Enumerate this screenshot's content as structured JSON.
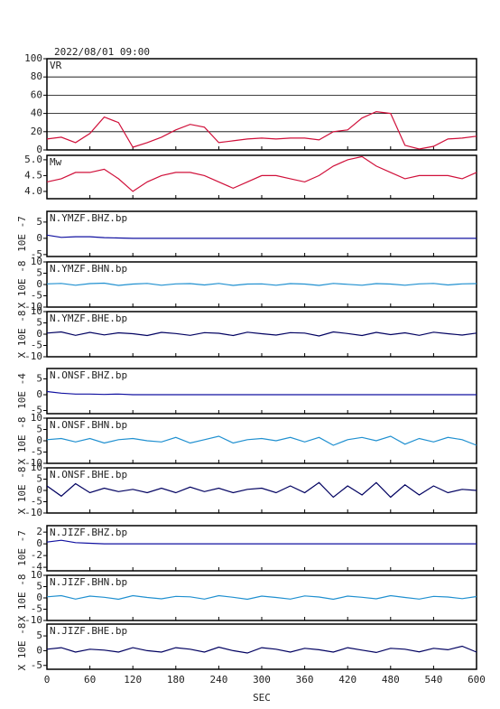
{
  "chart_data": [
    {
      "type": "line",
      "title": "2022/08/01 09:00",
      "label": "VR",
      "color": "#d0103a",
      "grid": true,
      "x": [
        0,
        20,
        40,
        60,
        80,
        100,
        120,
        140,
        160,
        180,
        200,
        220,
        240,
        260,
        280,
        300,
        320,
        340,
        360,
        380,
        400,
        420,
        440,
        460,
        480,
        500,
        520,
        540,
        560,
        580,
        600
      ],
      "values": [
        12,
        14,
        8,
        18,
        36,
        30,
        3,
        8,
        14,
        22,
        28,
        25,
        8,
        10,
        12,
        13,
        12,
        13,
        13,
        11,
        20,
        22,
        35,
        42,
        40,
        5,
        1,
        4,
        12,
        13,
        15
      ],
      "xlim": [
        0,
        600
      ],
      "ylim": [
        0,
        100
      ],
      "yticks": [
        0,
        20,
        40,
        60,
        80,
        100
      ]
    },
    {
      "type": "line",
      "label": "Mw",
      "color": "#d0103a",
      "x": [
        0,
        20,
        40,
        60,
        80,
        100,
        120,
        140,
        160,
        180,
        200,
        220,
        240,
        260,
        280,
        300,
        320,
        340,
        360,
        380,
        400,
        420,
        440,
        460,
        480,
        500,
        520,
        540,
        560,
        580,
        600
      ],
      "values": [
        4.3,
        4.4,
        4.6,
        4.6,
        4.7,
        4.4,
        4.0,
        4.3,
        4.5,
        4.6,
        4.6,
        4.5,
        4.3,
        4.1,
        4.3,
        4.5,
        4.5,
        4.4,
        4.3,
        4.5,
        4.8,
        5.0,
        5.1,
        4.8,
        4.6,
        4.4,
        4.5,
        4.5,
        4.5,
        4.4,
        4.6
      ],
      "xlim": [
        0,
        600
      ],
      "ylim": [
        3.77,
        5.14
      ],
      "yticks": [
        {
          "value": 4,
          "label": "4.0"
        },
        4.5,
        {
          "value": 5,
          "label": "5.0"
        }
      ]
    },
    {
      "type": "line",
      "label": "N.YMZF.BHZ.bp",
      "ylabel": "10E -7",
      "color": "#1010a0",
      "x": [
        0,
        20,
        40,
        60,
        80,
        100,
        120,
        140,
        160,
        180,
        200,
        220,
        240,
        260,
        280,
        300,
        320,
        340,
        360,
        380,
        400,
        420,
        440,
        460,
        480,
        500,
        520,
        540,
        560,
        580,
        600
      ],
      "values": [
        1,
        0.3,
        0.5,
        0.5,
        0.2,
        0.1,
        0,
        0,
        0,
        0,
        0,
        0,
        0,
        0,
        0,
        0,
        0,
        0,
        0,
        0,
        0,
        0,
        0,
        0,
        0,
        0,
        0,
        0,
        0,
        0,
        0
      ],
      "xlim": [
        0,
        600
      ],
      "ylim": [
        -5.6,
        8.3
      ],
      "yticks": [
        5,
        0,
        -5
      ]
    },
    {
      "type": "line",
      "label": "N.YMZF.BHN.bp",
      "ylabel": "X 10E -8",
      "color": "#2090d0",
      "x": [
        0,
        20,
        40,
        60,
        80,
        100,
        120,
        140,
        160,
        180,
        200,
        220,
        240,
        260,
        280,
        300,
        320,
        340,
        360,
        380,
        400,
        420,
        440,
        460,
        480,
        500,
        520,
        540,
        560,
        580,
        600
      ],
      "values": [
        0.3,
        0.5,
        -0.3,
        0.4,
        0.6,
        -0.4,
        0.2,
        0.5,
        -0.3,
        0.3,
        0.4,
        -0.2,
        0.5,
        -0.4,
        0.2,
        0.3,
        -0.3,
        0.4,
        0.2,
        -0.4,
        0.5,
        0.1,
        -0.3,
        0.4,
        0.2,
        -0.3,
        0.3,
        0.5,
        -0.2,
        0.3,
        0.4
      ],
      "xlim": [
        0,
        600
      ],
      "ylim": [
        -10,
        10
      ],
      "yticks": [
        10,
        5,
        0,
        -5,
        -10
      ]
    },
    {
      "type": "line",
      "label": "N.YMZF.BHE.bp",
      "ylabel": "X 10E -8",
      "color": "#000060",
      "x": [
        0,
        20,
        40,
        60,
        80,
        100,
        120,
        140,
        160,
        180,
        200,
        220,
        240,
        260,
        280,
        300,
        320,
        340,
        360,
        380,
        400,
        420,
        440,
        460,
        480,
        500,
        520,
        540,
        560,
        580,
        600
      ],
      "values": [
        0.5,
        1,
        -0.5,
        0.8,
        -0.3,
        0.6,
        0.2,
        -0.6,
        0.8,
        0.3,
        -0.5,
        0.7,
        0.4,
        -0.6,
        0.9,
        0.2,
        -0.4,
        0.7,
        0.5,
        -0.8,
        1,
        0.3,
        -0.6,
        0.8,
        -0.2,
        0.6,
        -0.5,
        0.9,
        0.2,
        -0.4,
        0.5
      ],
      "xlim": [
        0,
        600
      ],
      "ylim": [
        -10,
        10
      ],
      "yticks": [
        10,
        5,
        0,
        -5,
        -10
      ]
    },
    {
      "type": "line",
      "label": "N.ONSF.BHZ.bp",
      "ylabel": "10E -4",
      "color": "#1010a0",
      "x": [
        0,
        20,
        40,
        60,
        80,
        100,
        120,
        140,
        160,
        180,
        200,
        220,
        240,
        260,
        280,
        300,
        320,
        340,
        360,
        380,
        400,
        420,
        440,
        460,
        480,
        500,
        520,
        540,
        560,
        580,
        600
      ],
      "values": [
        1,
        0.5,
        0.2,
        0.2,
        0.1,
        0.2,
        0,
        0,
        0,
        0,
        0,
        0,
        0,
        0,
        0,
        0,
        0,
        0,
        0,
        0,
        0,
        0,
        0,
        0,
        0,
        0,
        0,
        0,
        0,
        0,
        0
      ],
      "xlim": [
        0,
        600
      ],
      "ylim": [
        -6,
        8.3
      ],
      "yticks": [
        5,
        0,
        -5
      ]
    },
    {
      "type": "line",
      "label": "N.ONSF.BHN.bp",
      "ylabel": "X 10E -8",
      "color": "#2090d0",
      "x": [
        0,
        20,
        40,
        60,
        80,
        100,
        120,
        140,
        160,
        180,
        200,
        220,
        240,
        260,
        280,
        300,
        320,
        340,
        360,
        380,
        400,
        420,
        440,
        460,
        480,
        500,
        520,
        540,
        560,
        580,
        600
      ],
      "values": [
        0.5,
        1,
        -0.5,
        1,
        -1,
        0.5,
        1,
        0,
        -0.5,
        1.5,
        -1,
        0.5,
        2,
        -1,
        0.5,
        1,
        0,
        1.5,
        -0.5,
        1.5,
        -2,
        0.5,
        1.5,
        0,
        2,
        -1.5,
        1,
        -0.5,
        1.5,
        0.5,
        -2
      ],
      "xlim": [
        0,
        600
      ],
      "ylim": [
        -10,
        10
      ],
      "yticks": [
        10,
        5,
        0,
        -5,
        -10
      ]
    },
    {
      "type": "line",
      "label": "N.ONSF.BHE.bp",
      "ylabel": "X 10E -8",
      "color": "#000060",
      "x": [
        0,
        20,
        40,
        60,
        80,
        100,
        120,
        140,
        160,
        180,
        200,
        220,
        240,
        260,
        280,
        300,
        320,
        340,
        360,
        380,
        400,
        420,
        440,
        460,
        480,
        500,
        520,
        540,
        560,
        580,
        600
      ],
      "values": [
        2,
        -2.5,
        3,
        -1,
        1,
        -0.5,
        0.5,
        -1,
        1,
        -1,
        1.5,
        -0.5,
        1,
        -1,
        0.5,
        1,
        -1,
        2,
        -1,
        3.5,
        -3,
        2,
        -2,
        3.5,
        -3,
        2.5,
        -2,
        2,
        -1,
        0.5,
        0
      ],
      "xlim": [
        0,
        600
      ],
      "ylim": [
        -10,
        10
      ],
      "yticks": [
        10,
        5,
        0,
        -5,
        -10
      ]
    },
    {
      "type": "line",
      "label": "N.JIZF.BHZ.bp",
      "ylabel": "10E -7",
      "color": "#1010a0",
      "x": [
        0,
        20,
        40,
        60,
        80,
        100,
        120,
        140,
        160,
        180,
        200,
        220,
        240,
        260,
        280,
        300,
        320,
        340,
        360,
        380,
        400,
        420,
        440,
        460,
        480,
        500,
        520,
        540,
        560,
        580,
        600
      ],
      "values": [
        0.3,
        0.6,
        0.2,
        0.1,
        0,
        0,
        0,
        0,
        0,
        0,
        0,
        0,
        0,
        0,
        0,
        0,
        0,
        0,
        0,
        0,
        0,
        0,
        0,
        0,
        0,
        0,
        0,
        0,
        0,
        0,
        0
      ],
      "xlim": [
        0,
        600
      ],
      "ylim": [
        -4.6,
        3.1
      ],
      "yticks": [
        2,
        0,
        -2,
        -4
      ]
    },
    {
      "type": "line",
      "label": "N.JIZF.BHN.bp",
      "ylabel": "X 10E -8",
      "color": "#2090d0",
      "x": [
        0,
        20,
        40,
        60,
        80,
        100,
        120,
        140,
        160,
        180,
        200,
        220,
        240,
        260,
        280,
        300,
        320,
        340,
        360,
        380,
        400,
        420,
        440,
        460,
        480,
        500,
        520,
        540,
        560,
        580,
        600
      ],
      "values": [
        0.5,
        1,
        -0.5,
        0.8,
        0.3,
        -0.6,
        1,
        0.2,
        -0.4,
        0.7,
        0.5,
        -0.5,
        1,
        0.3,
        -0.6,
        0.8,
        0.2,
        -0.5,
        0.9,
        0.4,
        -0.6,
        0.8,
        0.3,
        -0.4,
        1,
        0.2,
        -0.5,
        0.7,
        0.4,
        -0.3,
        0.6
      ],
      "xlim": [
        0,
        600
      ],
      "ylim": [
        -10,
        10
      ],
      "yticks": [
        10,
        5,
        0,
        -5,
        -10
      ]
    },
    {
      "type": "line",
      "label": "N.JIZF.BHE.bp",
      "ylabel": "X 10E -8",
      "xlabel": "SEC",
      "color": "#000060",
      "x": [
        0,
        20,
        40,
        60,
        80,
        100,
        120,
        140,
        160,
        180,
        200,
        220,
        240,
        260,
        280,
        300,
        320,
        340,
        360,
        380,
        400,
        420,
        440,
        460,
        480,
        500,
        520,
        540,
        560,
        580,
        600
      ],
      "values": [
        0.5,
        1,
        -0.5,
        0.5,
        0.2,
        -0.5,
        1,
        0,
        -0.5,
        1,
        0.5,
        -0.5,
        1.2,
        0,
        -0.8,
        1,
        0.5,
        -0.5,
        0.8,
        0.3,
        -0.5,
        1,
        0.2,
        -0.6,
        0.8,
        0.5,
        -0.4,
        0.8,
        0.3,
        1.5,
        -0.5
      ],
      "xlim": [
        0,
        600
      ],
      "ylim": [
        -6.3,
        9
      ],
      "yticks": [
        5,
        0,
        -5
      ],
      "xticks": [
        0,
        60,
        120,
        180,
        240,
        300,
        360,
        420,
        480,
        540,
        600
      ]
    }
  ]
}
